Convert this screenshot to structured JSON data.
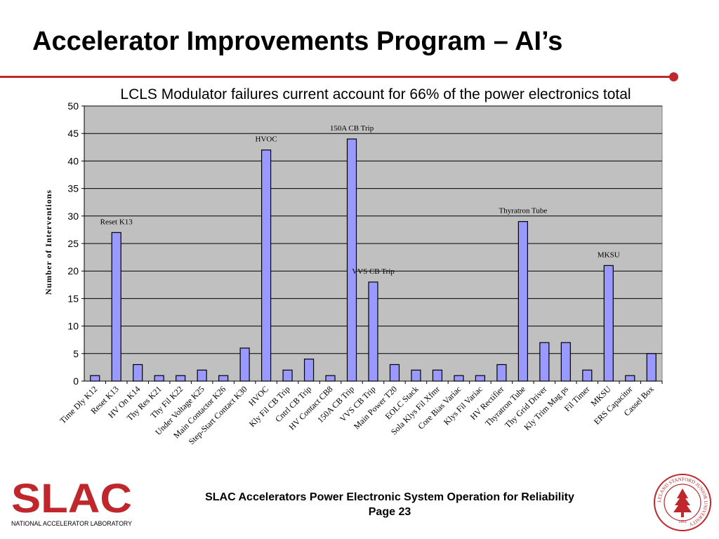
{
  "slide": {
    "title": "Accelerator Improvements Program – AI’s",
    "subtitle": "LCLS Modulator failures current account for 66% of the power electronics total",
    "footer_line1": "SLAC Accelerators Power Electronic System Operation for Reliability",
    "footer_line2": "Page 23",
    "logo_text": "SLAC",
    "logo_subtext": "NATIONAL ACCELERATOR LABORATORY",
    "seal_text": "LELAND STANFORD JUNIOR UNIVERSITY",
    "seal_year": "1891"
  },
  "colors": {
    "accent_red": "#c0272d",
    "bar_fill": "#9999ff",
    "plot_bg": "#c0c0c0"
  },
  "chart_data": {
    "type": "bar",
    "title": "",
    "xlabel": "",
    "ylabel": "Number of Interventions",
    "ylim": [
      0,
      50
    ],
    "yticks": [
      0,
      5,
      10,
      15,
      20,
      25,
      30,
      35,
      40,
      45,
      50
    ],
    "grid": true,
    "categories": [
      "Time Dly K12",
      "Reset K13",
      "HV On K14",
      "Thy Res K21",
      "Thy Fil K22",
      "Under Voltage K25",
      "Main Contactor K26",
      "Step-Start Contact K30",
      "HVOC",
      "Kly Fil CB Trip",
      "Cntrl CB Trip",
      "HV Contact CB8",
      "150A CB Trip",
      "VVS CB Trip",
      "Main Power T20",
      "EOLC Stack",
      "Sola Klys Fil Xfmr",
      "Core Bias Variac",
      "Klys Fil Variac",
      "HV Rectifier",
      "Thyratron Tube",
      "Thy Grid Driver",
      "Kly Trim Mag ps",
      "Fil Timer",
      "MKSU",
      "ERS Capacitor",
      "Cassel Box"
    ],
    "values": [
      1,
      27,
      3,
      1,
      1,
      2,
      1,
      6,
      42,
      2,
      4,
      1,
      44,
      18,
      3,
      2,
      2,
      1,
      1,
      3,
      29,
      7,
      7,
      2,
      21,
      1,
      5
    ],
    "annotations": [
      {
        "category": "Reset K13",
        "text": "Reset K13"
      },
      {
        "category": "HVOC",
        "text": "HVOC"
      },
      {
        "category": "150A CB Trip",
        "text": "150A CB Trip"
      },
      {
        "category": "VVS CB Trip",
        "text": "VVS CB Trip"
      },
      {
        "category": "Thyratron Tube",
        "text": "Thyratron Tube"
      },
      {
        "category": "MKSU",
        "text": "MKSU"
      }
    ]
  }
}
